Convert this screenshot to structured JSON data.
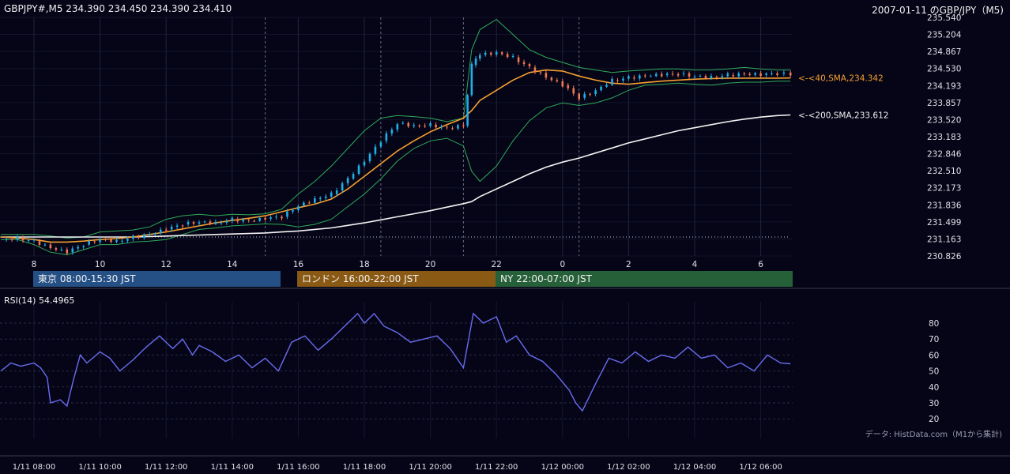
{
  "header": {
    "symbol_line": "GBPJPY#,M5 234.390 234.450 234.390 234.410",
    "title": "2007-01-11 のGBP/JPY（M5)"
  },
  "sessions": [
    {
      "label": "東京 08:00-15:30 JST",
      "color": "#255086"
    },
    {
      "label": "ロンドン 16:00-22:00 JST",
      "color": "#8a5a14"
    },
    {
      "label": "NY 22:00-07:00 JST",
      "color": "#266038"
    }
  ],
  "rsi": {
    "label": "RSI(14) 54.4965"
  },
  "footer": {
    "source": "データ: HistData.com（M1から集計)"
  },
  "chart_data": [
    {
      "type": "candlestick",
      "price_ticks": [
        "235.540",
        "235.204",
        "234.867",
        "234.530",
        "234.193",
        "233.857",
        "233.520",
        "233.183",
        "232.846",
        "232.510",
        "232.173",
        "231.836",
        "231.499",
        "231.163",
        "230.826"
      ],
      "ylim": [
        230.826,
        235.54
      ],
      "x_ticks": [
        "8",
        "10",
        "12",
        "14",
        "16",
        "18",
        "20",
        "22",
        "0",
        "2",
        "4",
        "6"
      ],
      "colors": {
        "up": "#22aee8",
        "down": "#f07855",
        "sma40": "#f5a030",
        "sma200": "#f4f4f4",
        "bollinger": "#2faa5a"
      },
      "series": [
        {
          "name": "<-<40,SMA,234.342",
          "last": 234.342
        },
        {
          "name": "<-<200,SMA,233.612",
          "last": 233.612
        }
      ],
      "hours": [
        7,
        7.5,
        8,
        8.5,
        9,
        9.5,
        10,
        10.5,
        11,
        11.5,
        12,
        12.5,
        13,
        13.5,
        14,
        14.5,
        15,
        15.5,
        16,
        16.5,
        17,
        17.5,
        18,
        18.5,
        19,
        19.5,
        20,
        20.5,
        21,
        21.25,
        21.5,
        22,
        22.5,
        23,
        23.5,
        24,
        24.5,
        25,
        25.5,
        26,
        26.5,
        27,
        27.5,
        28,
        28.5,
        29,
        29.5,
        30,
        30.5,
        30.9
      ],
      "close": [
        231.15,
        231.18,
        231.12,
        230.98,
        230.9,
        231.05,
        231.16,
        231.12,
        231.2,
        231.25,
        231.35,
        231.45,
        231.5,
        231.48,
        231.55,
        231.52,
        231.56,
        231.6,
        231.82,
        231.95,
        232.05,
        232.35,
        232.7,
        233.1,
        233.45,
        233.4,
        233.42,
        233.35,
        233.4,
        234.6,
        234.8,
        234.85,
        234.75,
        234.55,
        234.35,
        234.2,
        233.95,
        234.1,
        234.3,
        234.35,
        234.38,
        234.4,
        234.42,
        234.38,
        234.36,
        234.4,
        234.42,
        234.4,
        234.43,
        234.41
      ],
      "sma40": [
        231.2,
        231.18,
        231.15,
        231.1,
        231.1,
        231.12,
        231.15,
        231.17,
        231.2,
        231.25,
        231.3,
        231.36,
        231.42,
        231.48,
        231.53,
        231.57,
        231.62,
        231.7,
        231.78,
        231.85,
        231.95,
        232.15,
        232.4,
        232.65,
        232.9,
        233.1,
        233.28,
        233.42,
        233.55,
        233.7,
        233.9,
        234.1,
        234.3,
        234.45,
        234.5,
        234.48,
        234.38,
        234.3,
        234.24,
        234.22,
        234.25,
        234.28,
        234.3,
        234.32,
        234.33,
        234.34,
        234.34,
        234.34,
        234.34,
        234.342
      ],
      "sma200": [
        231.2,
        231.2,
        231.2,
        231.2,
        231.2,
        231.2,
        231.2,
        231.2,
        231.2,
        231.21,
        231.22,
        231.23,
        231.24,
        231.25,
        231.26,
        231.27,
        231.28,
        231.3,
        231.32,
        231.35,
        231.38,
        231.43,
        231.48,
        231.54,
        231.6,
        231.66,
        231.72,
        231.79,
        231.86,
        231.9,
        232.0,
        232.15,
        232.3,
        232.45,
        232.58,
        232.68,
        232.76,
        232.86,
        232.96,
        233.06,
        233.14,
        233.22,
        233.3,
        233.36,
        233.42,
        233.48,
        233.53,
        233.57,
        233.6,
        233.612
      ],
      "bb_upper": [
        231.25,
        231.25,
        231.25,
        231.22,
        231.18,
        231.2,
        231.3,
        231.32,
        231.34,
        231.4,
        231.55,
        231.62,
        231.65,
        231.62,
        231.65,
        231.64,
        231.66,
        231.75,
        232.05,
        232.3,
        232.6,
        232.95,
        233.3,
        233.55,
        233.6,
        233.58,
        233.55,
        233.48,
        233.55,
        234.9,
        235.3,
        235.5,
        235.2,
        234.9,
        234.75,
        234.65,
        234.55,
        234.5,
        234.45,
        234.48,
        234.5,
        234.52,
        234.52,
        234.5,
        234.5,
        234.52,
        234.55,
        234.52,
        234.5,
        234.5
      ],
      "bb_lower": [
        231.15,
        231.15,
        231.05,
        230.9,
        230.85,
        230.95,
        231.05,
        231.05,
        231.1,
        231.12,
        231.15,
        231.25,
        231.35,
        231.38,
        231.42,
        231.44,
        231.46,
        231.45,
        231.4,
        231.45,
        231.55,
        231.8,
        232.05,
        232.35,
        232.7,
        232.95,
        233.1,
        233.15,
        233.0,
        232.5,
        232.3,
        232.6,
        233.1,
        233.5,
        233.75,
        233.85,
        233.8,
        233.85,
        233.95,
        234.1,
        234.2,
        234.22,
        234.24,
        234.22,
        234.2,
        234.24,
        234.26,
        234.26,
        234.28,
        234.28
      ]
    },
    {
      "type": "line",
      "name": "RSI(14)",
      "y_ticks": [
        "80",
        "70",
        "60",
        "50",
        "40",
        "30",
        "20"
      ],
      "ylim": [
        15,
        90
      ],
      "x_ticks": [
        "1/11 08:00",
        "1/11 10:00",
        "1/11 12:00",
        "1/11 14:00",
        "1/11 16:00",
        "1/11 18:00",
        "1/11 20:00",
        "1/11 22:00",
        "1/12 00:00",
        "1/12 02:00",
        "1/12 04:00",
        "1/12 06:00"
      ],
      "color": "#6a6cf0",
      "hours": [
        7,
        7.3,
        7.6,
        8.0,
        8.2,
        8.4,
        8.5,
        8.8,
        9.0,
        9.2,
        9.4,
        9.6,
        10.0,
        10.3,
        10.6,
        11.0,
        11.4,
        11.8,
        12.2,
        12.5,
        12.8,
        13.0,
        13.4,
        13.8,
        14.2,
        14.6,
        15.0,
        15.4,
        15.8,
        16.2,
        16.6,
        17.0,
        17.4,
        17.8,
        18.0,
        18.3,
        18.6,
        19.0,
        19.4,
        19.8,
        20.2,
        20.6,
        21.0,
        21.3,
        21.6,
        22.0,
        22.3,
        22.6,
        23.0,
        23.4,
        23.8,
        24.2,
        24.4,
        24.6,
        25.0,
        25.4,
        25.8,
        26.2,
        26.6,
        27.0,
        27.4,
        27.8,
        28.2,
        28.6,
        29.0,
        29.4,
        29.8,
        30.2,
        30.6,
        30.9
      ],
      "values": [
        50,
        55,
        53,
        55,
        52,
        46,
        30,
        32,
        28,
        45,
        60,
        55,
        62,
        58,
        50,
        57,
        65,
        72,
        64,
        70,
        60,
        66,
        62,
        56,
        60,
        52,
        58,
        50,
        68,
        72,
        63,
        70,
        78,
        86,
        80,
        86,
        78,
        74,
        68,
        70,
        72,
        64,
        52,
        86,
        80,
        84,
        68,
        72,
        60,
        56,
        48,
        38,
        30,
        25,
        42,
        58,
        55,
        62,
        56,
        60,
        58,
        65,
        58,
        60,
        52,
        55,
        50,
        60,
        55,
        54.4965
      ]
    }
  ]
}
